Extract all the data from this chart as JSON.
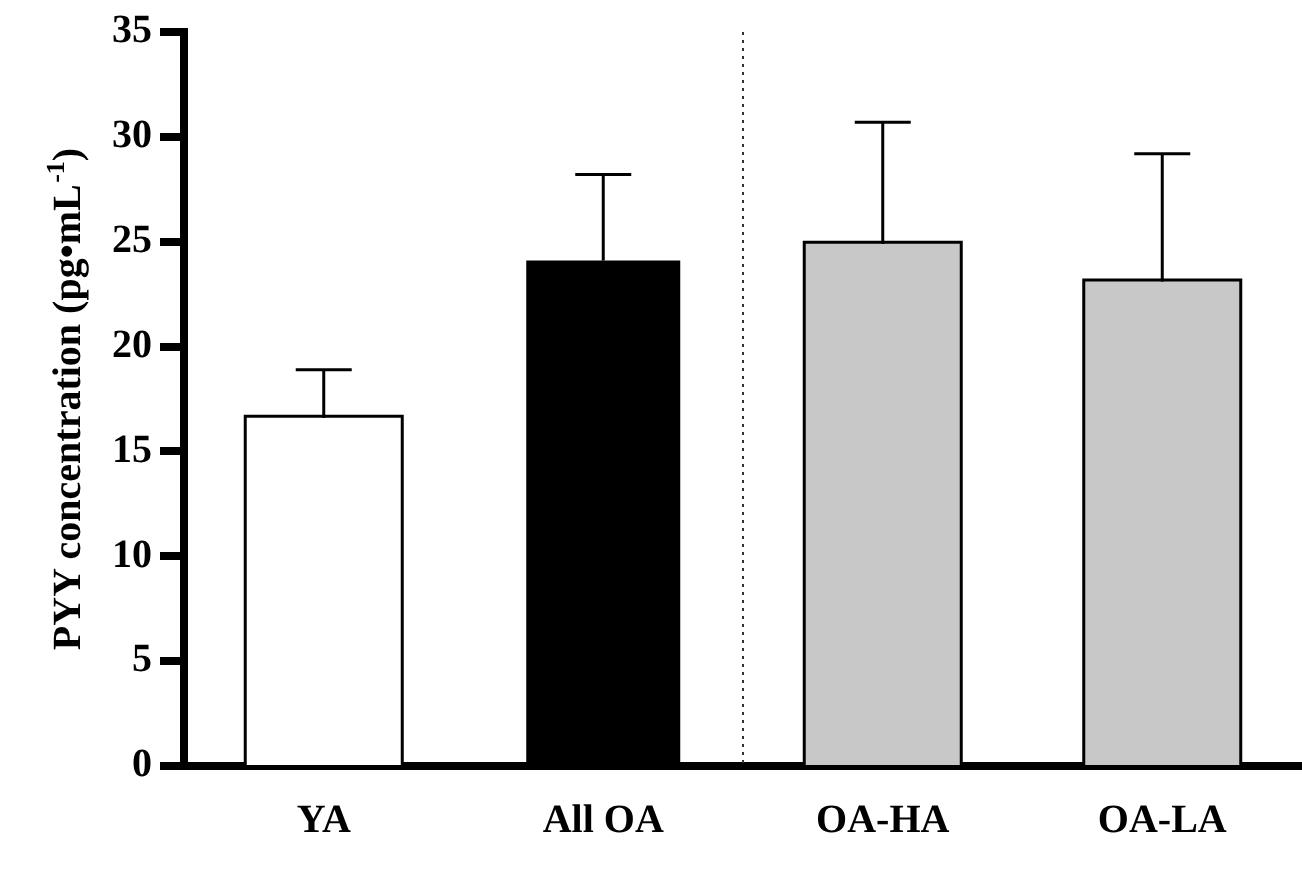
{
  "chart_data": {
    "type": "bar",
    "ylabel": "PYY concentration (pg•mL$^{-1}$)",
    "categories": [
      "YA",
      "All OA",
      "OA-HA",
      "OA-LA"
    ],
    "values": [
      16.6,
      24.1,
      24.9,
      23.1
    ],
    "colors": [
      "#ffffff",
      "#000000",
      "#c8c8c8",
      "#c8c8c8"
    ],
    "errors": [
      [
        16.6,
        18.9
      ],
      [
        24.1,
        28.2
      ],
      [
        24.9,
        30.7
      ],
      [
        23.1,
        29.2
      ]
    ],
    "ylim": [
      0,
      35
    ],
    "yticks": [
      0,
      5,
      10,
      15,
      20,
      25,
      30,
      35
    ],
    "grid": false,
    "legend": false
  }
}
